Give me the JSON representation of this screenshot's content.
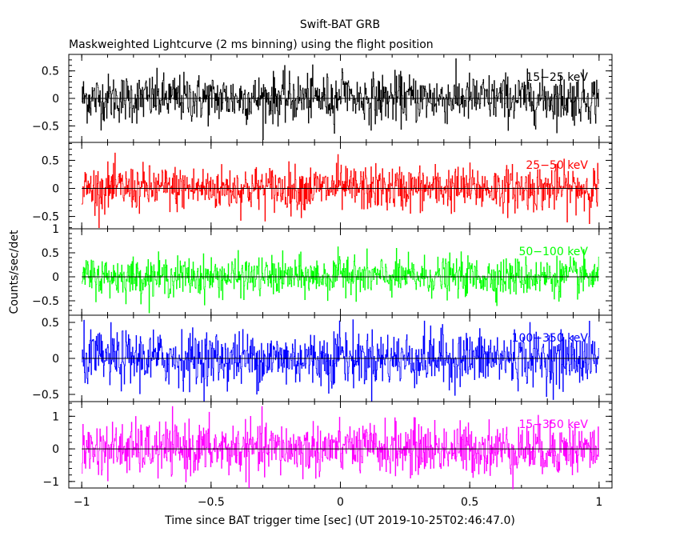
{
  "chart_data": {
    "type": "line",
    "title": "Swift-BAT GRB",
    "subtitle": "Maskweighted Lightcurve (2 ms binning) using the flight position",
    "xlabel": "Time since BAT trigger time [sec] (UT 2019-10-25T02:46:47.0)",
    "ylabel": "Counts/sec/det",
    "xlim": [
      -1.05,
      1.05
    ],
    "x_ticks": [
      -1,
      -0.5,
      0,
      0.5,
      1
    ],
    "x_tick_labels": [
      "−1",
      "−0.5",
      "0",
      "0.5",
      "1"
    ],
    "bin_seconds": 0.002,
    "x_start": -1.0,
    "x_end": 1.0,
    "panels": [
      {
        "series": {
          "name": "15−25 keV",
          "color": "#000000"
        },
        "band_label": "15−25 keV",
        "ylim": [
          -0.8,
          0.8
        ],
        "y_ticks": [
          -0.5,
          0,
          0.5
        ],
        "y_tick_labels": [
          "−0.5",
          "0",
          "0.5"
        ],
        "noise_amplitude": 0.22,
        "spike_max": 0.75
      },
      {
        "series": {
          "name": "25−50 keV",
          "color": "#ff0000"
        },
        "band_label": "25−50 keV",
        "ylim": [
          -0.72,
          0.82
        ],
        "y_ticks": [
          -0.5,
          0,
          0.5
        ],
        "y_tick_labels": [
          "−0.5",
          "0",
          "0.5"
        ],
        "noise_amplitude": 0.2,
        "spike_max": 0.7
      },
      {
        "series": {
          "name": "50−100 keV",
          "color": "#00ff00"
        },
        "band_label": "50−100 keV",
        "ylim": [
          -0.8,
          1.0
        ],
        "y_ticks": [
          -0.5,
          0,
          0.5,
          1
        ],
        "y_tick_labels": [
          "−0.5",
          "0",
          "0.5",
          "1"
        ],
        "noise_amplitude": 0.2,
        "spike_max": 0.9
      },
      {
        "series": {
          "name": "100−350 keV",
          "color": "#0000ff"
        },
        "band_label": "100−350 keV",
        "ylim": [
          -0.6,
          0.6
        ],
        "y_ticks": [
          -0.5,
          0,
          0.5
        ],
        "y_tick_labels": [
          "−0.5",
          "0",
          "0.5"
        ],
        "noise_amplitude": 0.19,
        "spike_max": 0.6
      },
      {
        "series": {
          "name": "15−350 keV",
          "color": "#ff00ff"
        },
        "band_label": "15−350 keV",
        "ylim": [
          -1.2,
          1.45
        ],
        "y_ticks": [
          -1,
          0,
          1
        ],
        "y_tick_labels": [
          "−1",
          "0",
          "1"
        ],
        "noise_amplitude": 0.4,
        "spike_max": 1.3
      }
    ],
    "grid": false,
    "legend": "none"
  }
}
